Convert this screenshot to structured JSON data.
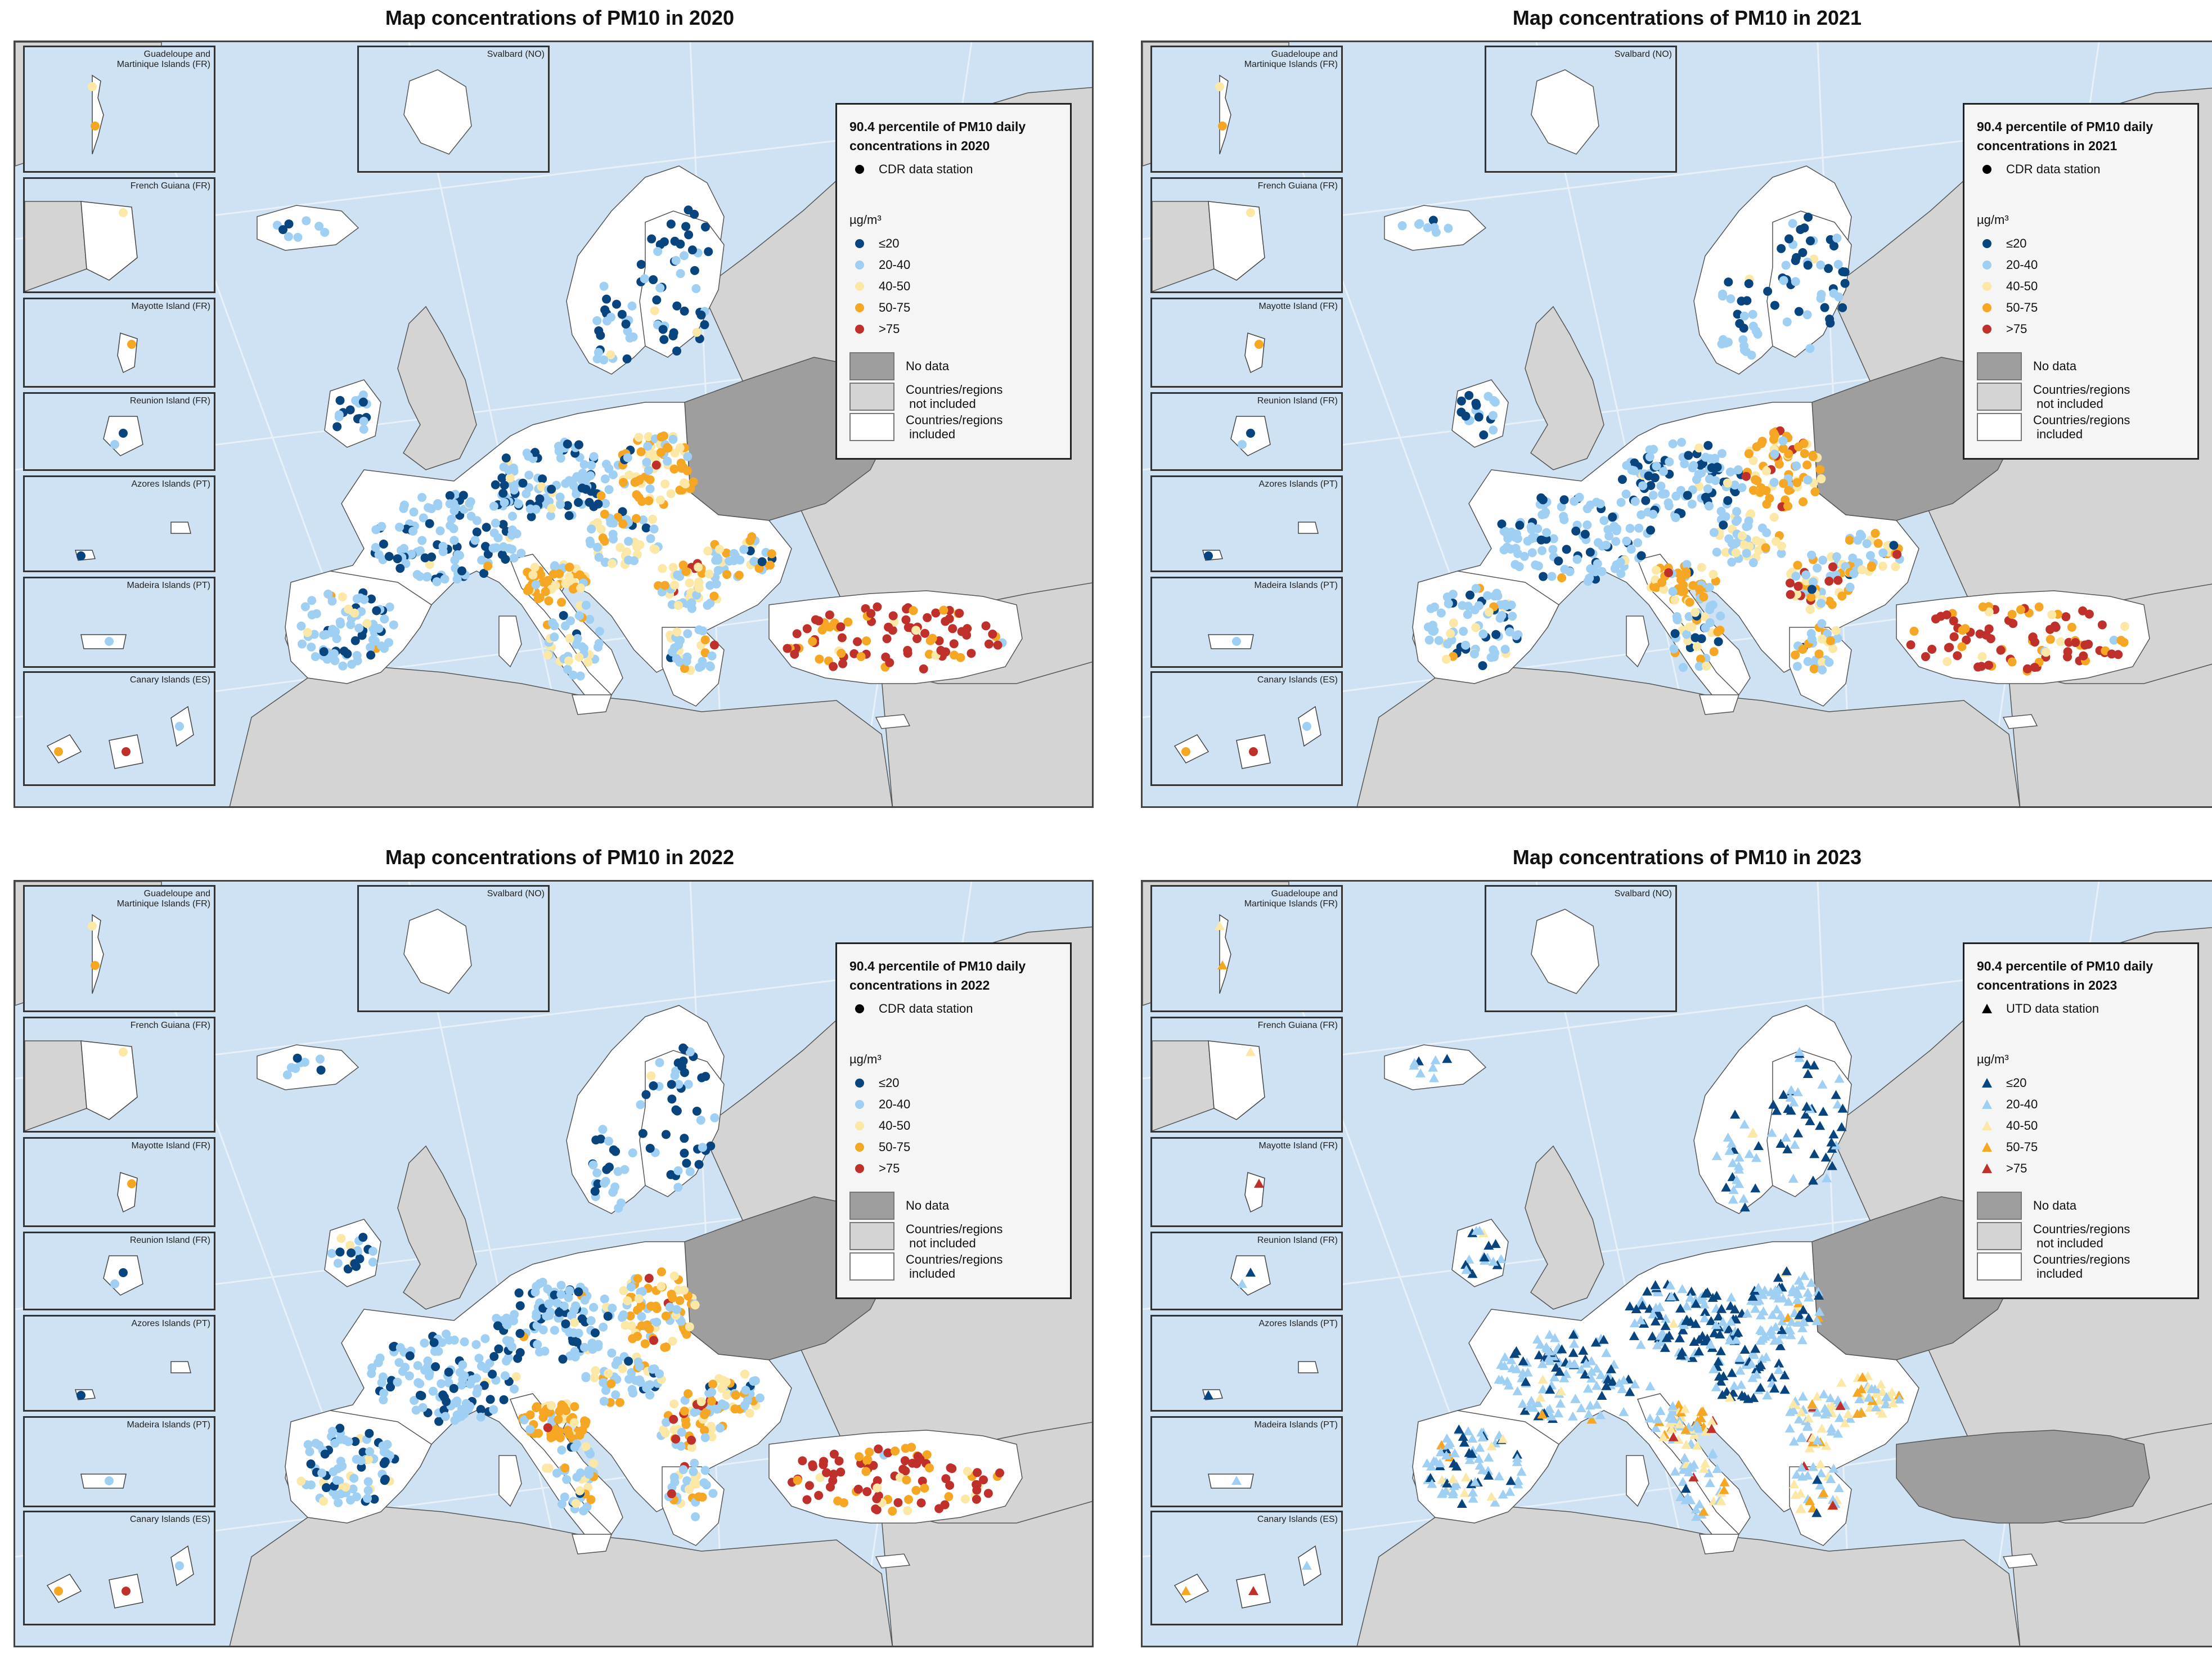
{
  "colors": {
    "sea": "#cfe2f3",
    "other_land": "#d4d4d4",
    "no_data": "#9e9e9e",
    "included": "#ffffff",
    "class_le20": "#08457e",
    "class_20_40": "#9fd0f3",
    "class_40_50": "#fbe8a6",
    "class_50_75": "#f5a623",
    "class_gt75": "#c0302b"
  },
  "legend_classes": [
    "≤20",
    "20-40",
    "40-50",
    "50-75",
    ">75"
  ],
  "legend_unit": "µg/m³",
  "legend_swatches": {
    "no_data": "No data",
    "not_included": "Countries/regions\n not included",
    "included": "Countries/regions\n included"
  },
  "insets": [
    {
      "label": "Guadeloupe and\nMartinique Islands (FR)"
    },
    {
      "label": "French Guiana (FR)"
    },
    {
      "label": "Mayotte Island (FR)"
    },
    {
      "label": "Reunion Island (FR)"
    },
    {
      "label": "Azores Islands (PT)"
    },
    {
      "label": "Madeira Islands (PT)"
    },
    {
      "label": "Canary Islands (ES)"
    }
  ],
  "svalbard_label": "Svalbard (NO)",
  "panels": [
    {
      "title": "Map concentrations of PM10 in 2020",
      "legend_title": "90.4 percentile of PM10 daily\nconcentrations in 2020",
      "station_label": "CDR data station",
      "marker": "circle",
      "turkey_included": true
    },
    {
      "title": "Map concentrations of PM10 in 2021",
      "legend_title": "90.4 percentile of PM10 daily\nconcentrations in 2021",
      "station_label": "CDR data station",
      "marker": "circle",
      "turkey_included": true
    },
    {
      "title": "Map concentrations of PM10 in 2022",
      "legend_title": "90.4 percentile of PM10 daily\nconcentrations in 2022",
      "station_label": "CDR data station",
      "marker": "circle",
      "turkey_included": true
    },
    {
      "title": "Map concentrations of PM10 in 2023",
      "legend_title": "90.4 percentile of PM10 daily\nconcentrations in 2023",
      "station_label": "UTD data station",
      "marker": "triangle",
      "turkey_included": false
    }
  ]
}
